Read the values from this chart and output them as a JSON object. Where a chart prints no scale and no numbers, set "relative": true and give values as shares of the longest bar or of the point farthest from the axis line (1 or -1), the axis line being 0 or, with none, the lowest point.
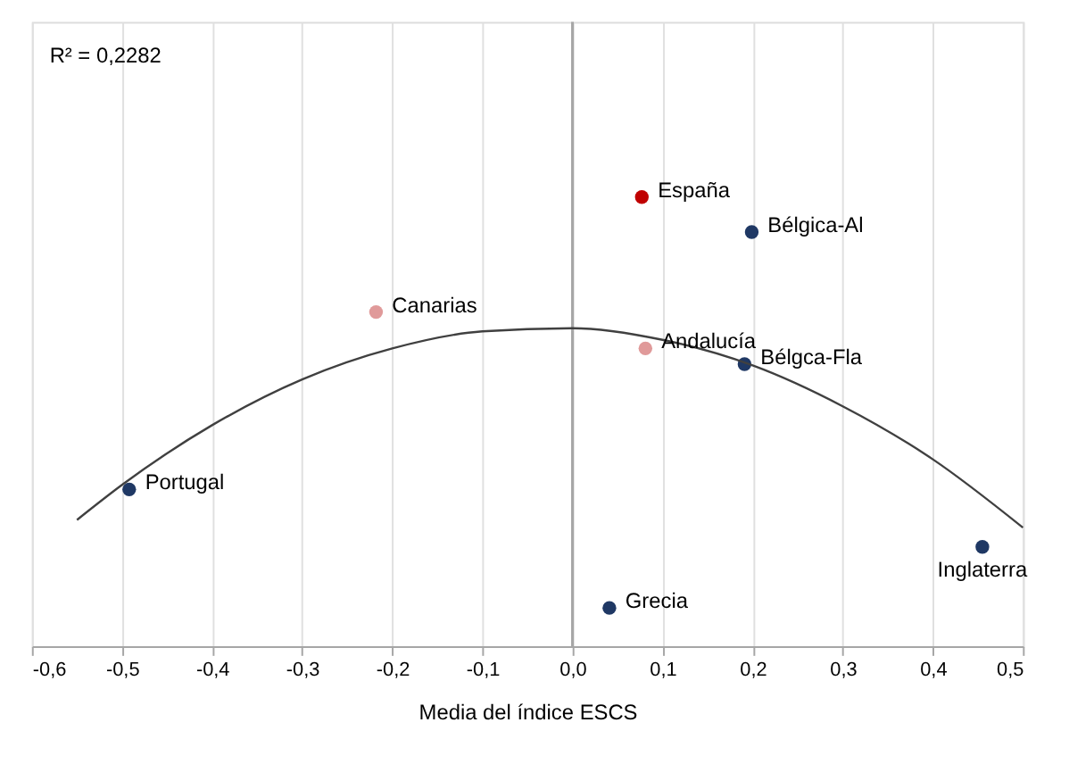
{
  "chart_data": {
    "type": "scatter",
    "relative": true,
    "xlabel": "Media del índice ESCS",
    "xlim": [
      -0.6,
      0.5
    ],
    "xticks": [
      {
        "value": -0.6,
        "label": "-0,6"
      },
      {
        "value": -0.5,
        "label": "-0,5"
      },
      {
        "value": -0.4,
        "label": "-0,4"
      },
      {
        "value": -0.3,
        "label": "-0,3"
      },
      {
        "value": -0.2,
        "label": "-0,2"
      },
      {
        "value": -0.1,
        "label": "-0,1"
      },
      {
        "value": 0,
        "label": "0,0"
      },
      {
        "value": 0.1,
        "label": "0,1"
      },
      {
        "value": 0.2,
        "label": "0,2"
      },
      {
        "value": 0.3,
        "label": "0,3"
      },
      {
        "value": 0.4,
        "label": "0,4"
      },
      {
        "value": 0.5,
        "label": "0,5"
      }
    ],
    "grid": "x",
    "marker": "circle",
    "series": [
      {
        "x": [
          0.077,
          0.199,
          -0.218,
          0.081,
          0.191,
          -0.492,
          0.455,
          0.041
        ],
        "values": [
          1,
          0.922,
          0.744,
          0.663,
          0.628,
          0.349,
          0.221,
          0.085
        ],
        "colors": [
          "#c00000",
          "#1f3864",
          "#e09a9a",
          "#e09a9a",
          "#1f3864",
          "#1f3864",
          "#1f3864",
          "#1f3864"
        ]
      },
      {
        "type": "line",
        "marker": "none",
        "color": "#404040",
        "x": [
          -0.55,
          -0.5,
          -0.4,
          -0.3,
          -0.2,
          -0.1,
          0,
          0.1,
          0.2,
          0.3,
          0.4,
          0.5
        ],
        "values": [
          0.281,
          0.359,
          0.492,
          0.594,
          0.663,
          0.701,
          0.708,
          0.682,
          0.625,
          0.534,
          0.416,
          0.264
        ]
      }
    ],
    "ref_lines": [
      {
        "axis": "x",
        "value": 0,
        "color": "#a6a6a6"
      }
    ],
    "annotations": [
      "R² = 0,2282",
      {
        "text": "España",
        "x": 0.077,
        "y": 1
      },
      {
        "text": "Bélgica-Al",
        "x": 0.199,
        "y": 0.922
      },
      {
        "text": "Canarias",
        "x": -0.218,
        "y": 0.744
      },
      {
        "text": "Andalucía",
        "x": 0.081,
        "y": 0.663
      },
      {
        "text": "Bélgca-Fla",
        "x": 0.191,
        "y": 0.628
      },
      {
        "text": "Portugal",
        "x": -0.492,
        "y": 0.349
      },
      {
        "text": "Inglaterra",
        "x": 0.455,
        "y": 0.221
      },
      {
        "text": "Grecia",
        "x": 0.041,
        "y": 0.085
      }
    ]
  }
}
